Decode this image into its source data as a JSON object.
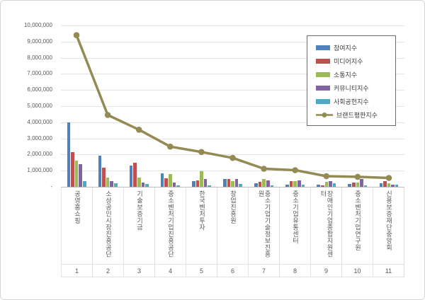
{
  "chart_data": {
    "type": "bar",
    "subtype": "grouped-bar-with-line-overlay",
    "title": "",
    "xlabel": "",
    "ylabel": "",
    "categories": [
      "공영홈쇼핑",
      "소상공인시장진흥공단",
      "기술보증기금",
      "중소벤처기업진흥공단",
      "한국벤처투자",
      "창업진흥원",
      "중소기업기술정보진흥원",
      "중소기업유통센터",
      "장애인기업종합지원센터",
      "중소벤처기업연구원",
      "신용보증재단중앙회"
    ],
    "category_ranks": [
      "1",
      "2",
      "3",
      "4",
      "5",
      "6",
      "7",
      "8",
      "9",
      "10",
      "11"
    ],
    "series": [
      {
        "name": "참여지수",
        "type": "bar",
        "color": "#4F81BD",
        "values": [
          3980000,
          1940000,
          1320000,
          840000,
          370000,
          500000,
          200000,
          150000,
          120000,
          180000,
          230000
        ]
      },
      {
        "name": "미디어지수",
        "type": "bar",
        "color": "#C0504D",
        "values": [
          2130000,
          1180000,
          1500000,
          520000,
          400000,
          480000,
          300000,
          330000,
          80000,
          270000,
          370000
        ]
      },
      {
        "name": "소통지수",
        "type": "bar",
        "color": "#9BBB59",
        "values": [
          1610000,
          590000,
          560000,
          810000,
          960000,
          350000,
          500000,
          330000,
          300000,
          270000,
          230000
        ]
      },
      {
        "name": "커뮤니티지수",
        "type": "bar",
        "color": "#8064A2",
        "values": [
          1390000,
          330000,
          270000,
          250000,
          490000,
          470000,
          400000,
          400000,
          370000,
          470000,
          150000
        ]
      },
      {
        "name": "사회공헌지수",
        "type": "bar",
        "color": "#4BACC6",
        "values": [
          350000,
          230000,
          180000,
          110000,
          110000,
          170000,
          100000,
          120000,
          230000,
          80000,
          150000
        ]
      },
      {
        "name": "브랜드평판지수",
        "type": "line",
        "color": "#948A54",
        "values": [
          9400000,
          4450000,
          3540000,
          2490000,
          2160000,
          1790000,
          1120000,
          1030000,
          660000,
          620000,
          550000
        ]
      }
    ],
    "y_axis": {
      "min": 0,
      "max": 10000000,
      "tick_interval": 1000000,
      "tick_labels": [
        "10,000,000",
        "9,000,000",
        "8,000,000",
        "7,000,000",
        "6,000,000",
        "5,000,000",
        "4,000,000",
        "3,000,000",
        "2,000,000",
        "1,000,000",
        "-"
      ],
      "grid": true
    },
    "legend": {
      "position": "top-right",
      "items": [
        "참여지수",
        "미디어지수",
        "소통지수",
        "커뮤니티지수",
        "사회공헌지수",
        "브랜드평판지수"
      ]
    },
    "colors": {
      "gridline": "#e4e4e4",
      "axis_line": "#bfbfbf",
      "axis_text": "#595959",
      "legend_border": "#6b6b6b"
    }
  }
}
